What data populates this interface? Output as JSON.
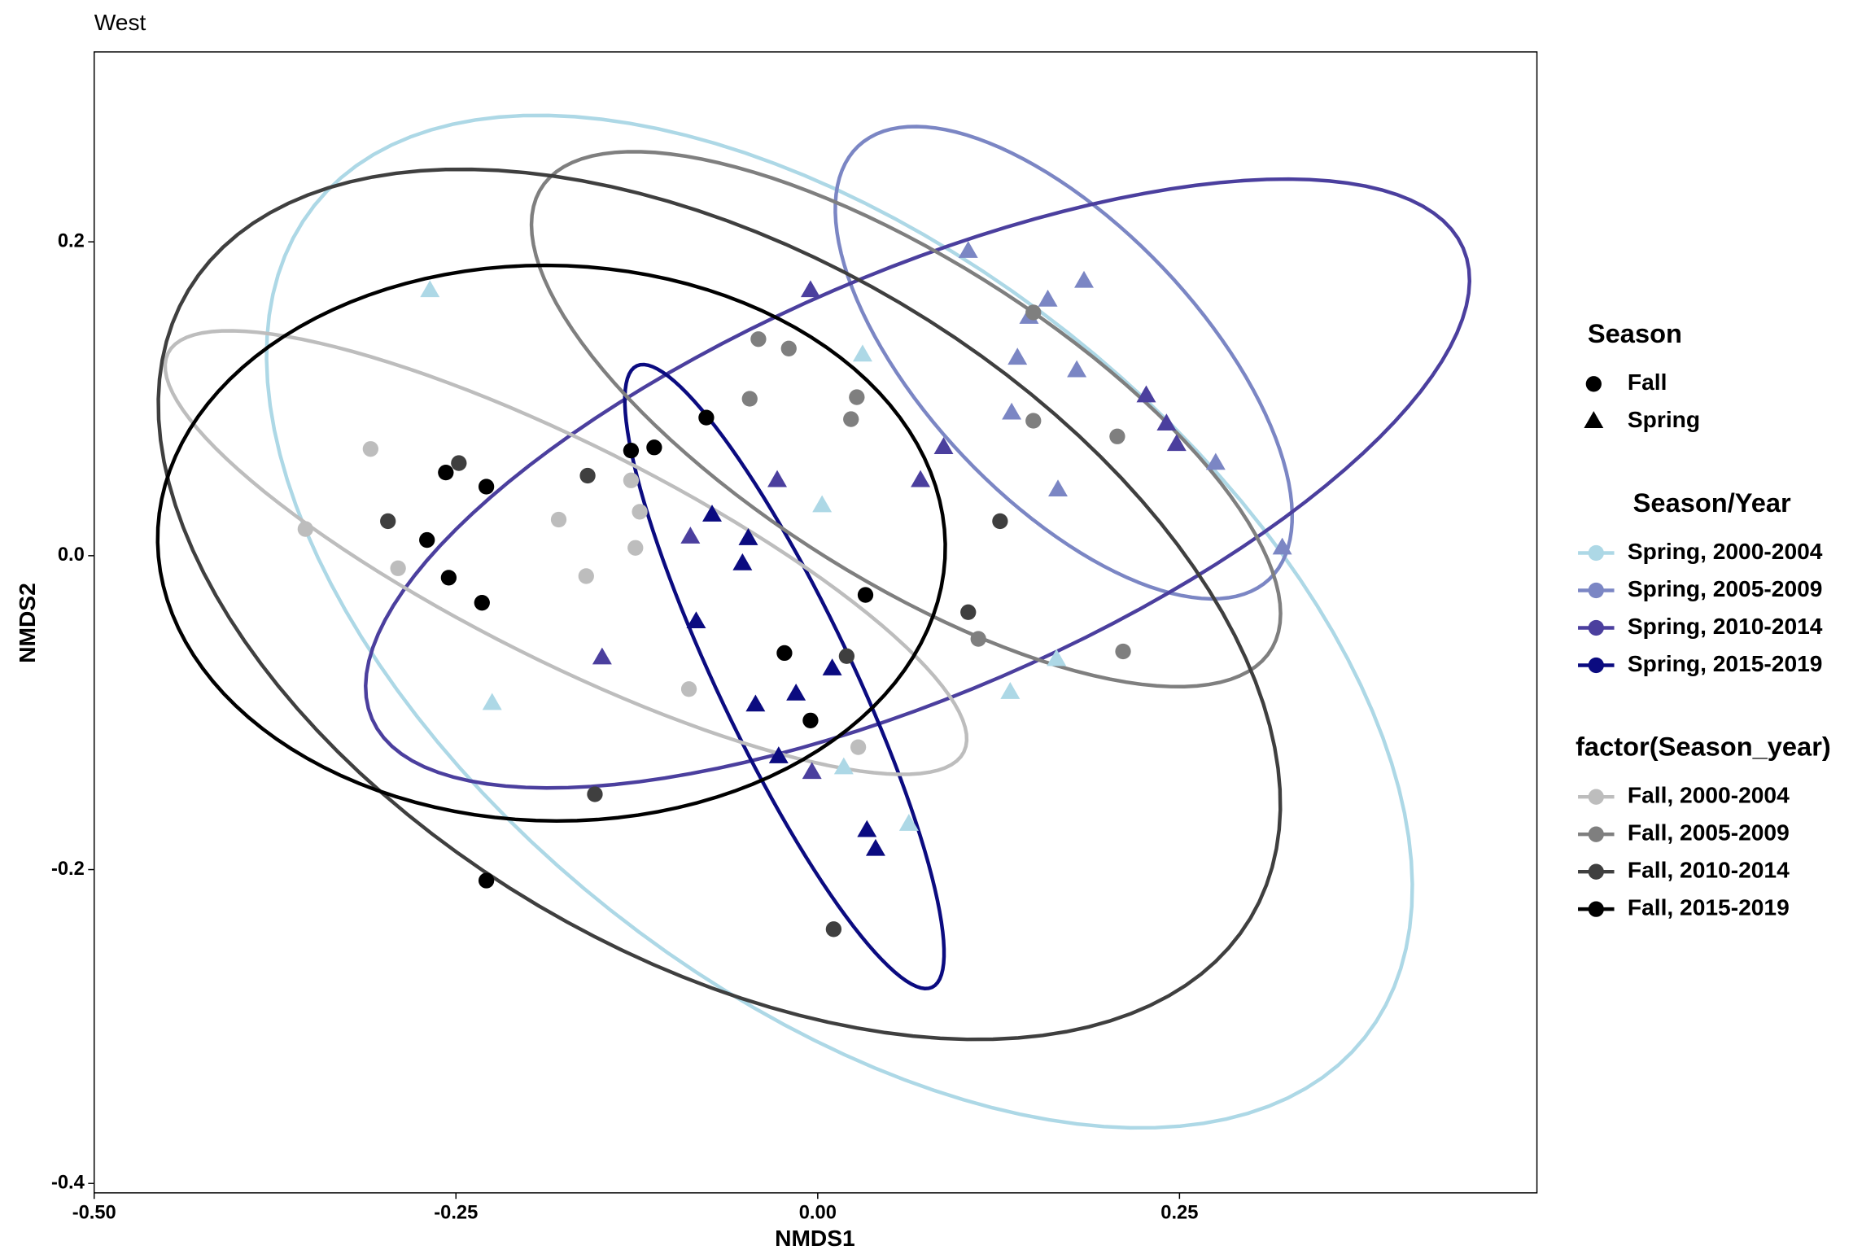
{
  "chart_data": {
    "type": "scatter",
    "title": "West",
    "x_label": "NMDS1",
    "y_label": "NMDS2",
    "xlim": [
      -0.5,
      0.497
    ],
    "ylim": [
      -0.406,
      0.321
    ],
    "xticks": [
      {
        "value": -0.5,
        "label": "-0.50"
      },
      {
        "value": -0.25,
        "label": "-0.25"
      },
      {
        "value": 0,
        "label": "0.00"
      },
      {
        "value": 0.25,
        "label": "0.25"
      }
    ],
    "yticks": [
      {
        "value": -0.4,
        "label": "-0.4"
      },
      {
        "value": -0.2,
        "label": "-0.2"
      },
      {
        "value": 0,
        "label": "0.0"
      },
      {
        "value": 0.2,
        "label": "0.2"
      }
    ],
    "grid": false,
    "legend_groups": [
      {
        "title": "Season",
        "entries": [
          {
            "label": "Fall",
            "shape": "circle"
          },
          {
            "label": "Spring",
            "shape": "triangle"
          }
        ]
      },
      {
        "title": "Season/Year"
      },
      {
        "title": "factor(Season_year)"
      }
    ],
    "series": [
      {
        "name": "Spring, 2000-2004",
        "color": "#add8e6",
        "shape": "triangle",
        "legend_group": 1,
        "x": [
          -0.268,
          0.031,
          0.003,
          -0.225,
          0.165,
          0.133,
          0.018,
          0.063
        ],
        "y": [
          0.169,
          0.128,
          0.032,
          -0.094,
          -0.066,
          -0.087,
          -0.135,
          -0.171
        ],
        "ellipse": {
          "center": [
            0.015,
            -0.042
          ],
          "axis1": [
            0.363,
            -0.265
          ],
          "axis2": [
            -0.158,
            -0.184
          ]
        }
      },
      {
        "name": "Spring, 2005-2009",
        "color": "#7b86c4",
        "shape": "triangle",
        "legend_group": 1,
        "x": [
          0.104,
          0.159,
          0.146,
          0.184,
          0.138,
          0.134,
          0.179,
          0.166,
          0.275,
          0.321
        ],
        "y": [
          0.194,
          0.163,
          0.152,
          0.175,
          0.126,
          0.091,
          0.118,
          0.042,
          0.059,
          0.005
        ],
        "ellipse": {
          "center": [
            0.17,
            0.123
          ],
          "axis1": [
            0.142,
            -0.138
          ],
          "axis2": [
            -0.069,
            -0.06
          ]
        }
      },
      {
        "name": "Spring, 2010-2014",
        "color": "#4b3f9e",
        "shape": "triangle",
        "legend_group": 1,
        "x": [
          -0.005,
          0.227,
          0.241,
          0.248,
          0.087,
          0.071,
          -0.028,
          -0.088,
          -0.149,
          -0.004
        ],
        "y": [
          0.169,
          0.102,
          0.084,
          0.071,
          0.069,
          0.048,
          0.048,
          0.012,
          -0.065,
          -0.138
        ],
        "ellipse": {
          "center": [
            0.069,
            0.046
          ],
          "axis1": [
            0.377,
            0.15
          ],
          "axis2": [
            0.058,
            -0.123
          ]
        }
      },
      {
        "name": "Spring, 2015-2019",
        "color": "#0b0b80",
        "shape": "triangle",
        "legend_group": 1,
        "x": [
          -0.073,
          -0.048,
          -0.052,
          -0.084,
          -0.043,
          -0.015,
          0.01,
          -0.027,
          0.034,
          0.04
        ],
        "y": [
          0.026,
          0.011,
          -0.005,
          -0.042,
          -0.095,
          -0.088,
          -0.072,
          -0.128,
          -0.175,
          -0.187
        ],
        "ellipse": {
          "center": [
            -0.023,
            -0.077
          ],
          "axis1": [
            0.102,
            -0.198
          ],
          "axis2": [
            -0.042,
            -0.018
          ]
        }
      },
      {
        "name": "Fall, 2000-2004",
        "color": "#bdbdbd",
        "shape": "circle",
        "legend_group": 2,
        "x": [
          -0.354,
          -0.309,
          -0.29,
          -0.179,
          -0.16,
          -0.129,
          -0.123,
          -0.126,
          -0.089,
          0.028
        ],
        "y": [
          0.017,
          0.068,
          -0.008,
          0.023,
          -0.013,
          0.048,
          0.028,
          0.005,
          -0.085,
          -0.122
        ],
        "ellipse": {
          "center": [
            -0.174,
            0.002
          ],
          "axis1": [
            0.275,
            -0.127
          ],
          "axis2": [
            -0.033,
            -0.062
          ]
        }
      },
      {
        "name": "Fall, 2005-2009",
        "color": "#7f7f7f",
        "shape": "circle",
        "legend_group": 2,
        "x": [
          -0.041,
          -0.02,
          -0.047,
          0.027,
          0.023,
          0.149,
          0.149,
          0.207,
          0.111,
          0.211
        ],
        "y": [
          0.138,
          0.132,
          0.1,
          0.101,
          0.087,
          0.155,
          0.086,
          0.076,
          -0.053,
          -0.061
        ],
        "ellipse": {
          "center": [
            0.061,
            0.087
          ],
          "axis1": [
            0.25,
            -0.15
          ],
          "axis2": [
            -0.067,
            -0.081
          ]
        }
      },
      {
        "name": "Fall, 2010-2014",
        "color": "#3f3f3f",
        "shape": "circle",
        "legend_group": 2,
        "x": [
          -0.248,
          -0.297,
          -0.159,
          0.126,
          0.104,
          0.02,
          -0.154,
          0.011
        ],
        "y": [
          0.059,
          0.022,
          0.051,
          0.022,
          -0.036,
          -0.064,
          -0.152,
          -0.238
        ],
        "ellipse": {
          "center": [
            -0.068,
            -0.031
          ],
          "axis1": [
            0.367,
            -0.2
          ],
          "axis2": [
            -0.125,
            -0.192
          ]
        }
      },
      {
        "name": "Fall, 2015-2019",
        "color": "#000000",
        "shape": "circle",
        "legend_group": 2,
        "x": [
          -0.257,
          -0.229,
          -0.27,
          -0.255,
          -0.232,
          -0.129,
          -0.113,
          -0.077,
          0.033,
          -0.023,
          -0.005,
          -0.229
        ],
        "y": [
          0.053,
          0.044,
          0.01,
          -0.014,
          -0.03,
          0.067,
          0.069,
          0.088,
          -0.025,
          -0.062,
          -0.105,
          -0.207
        ],
        "ellipse": {
          "center": [
            -0.184,
            0.008
          ],
          "axis1": [
            0.271,
            -0.019
          ],
          "axis2": [
            -0.025,
            -0.176
          ]
        }
      }
    ]
  }
}
